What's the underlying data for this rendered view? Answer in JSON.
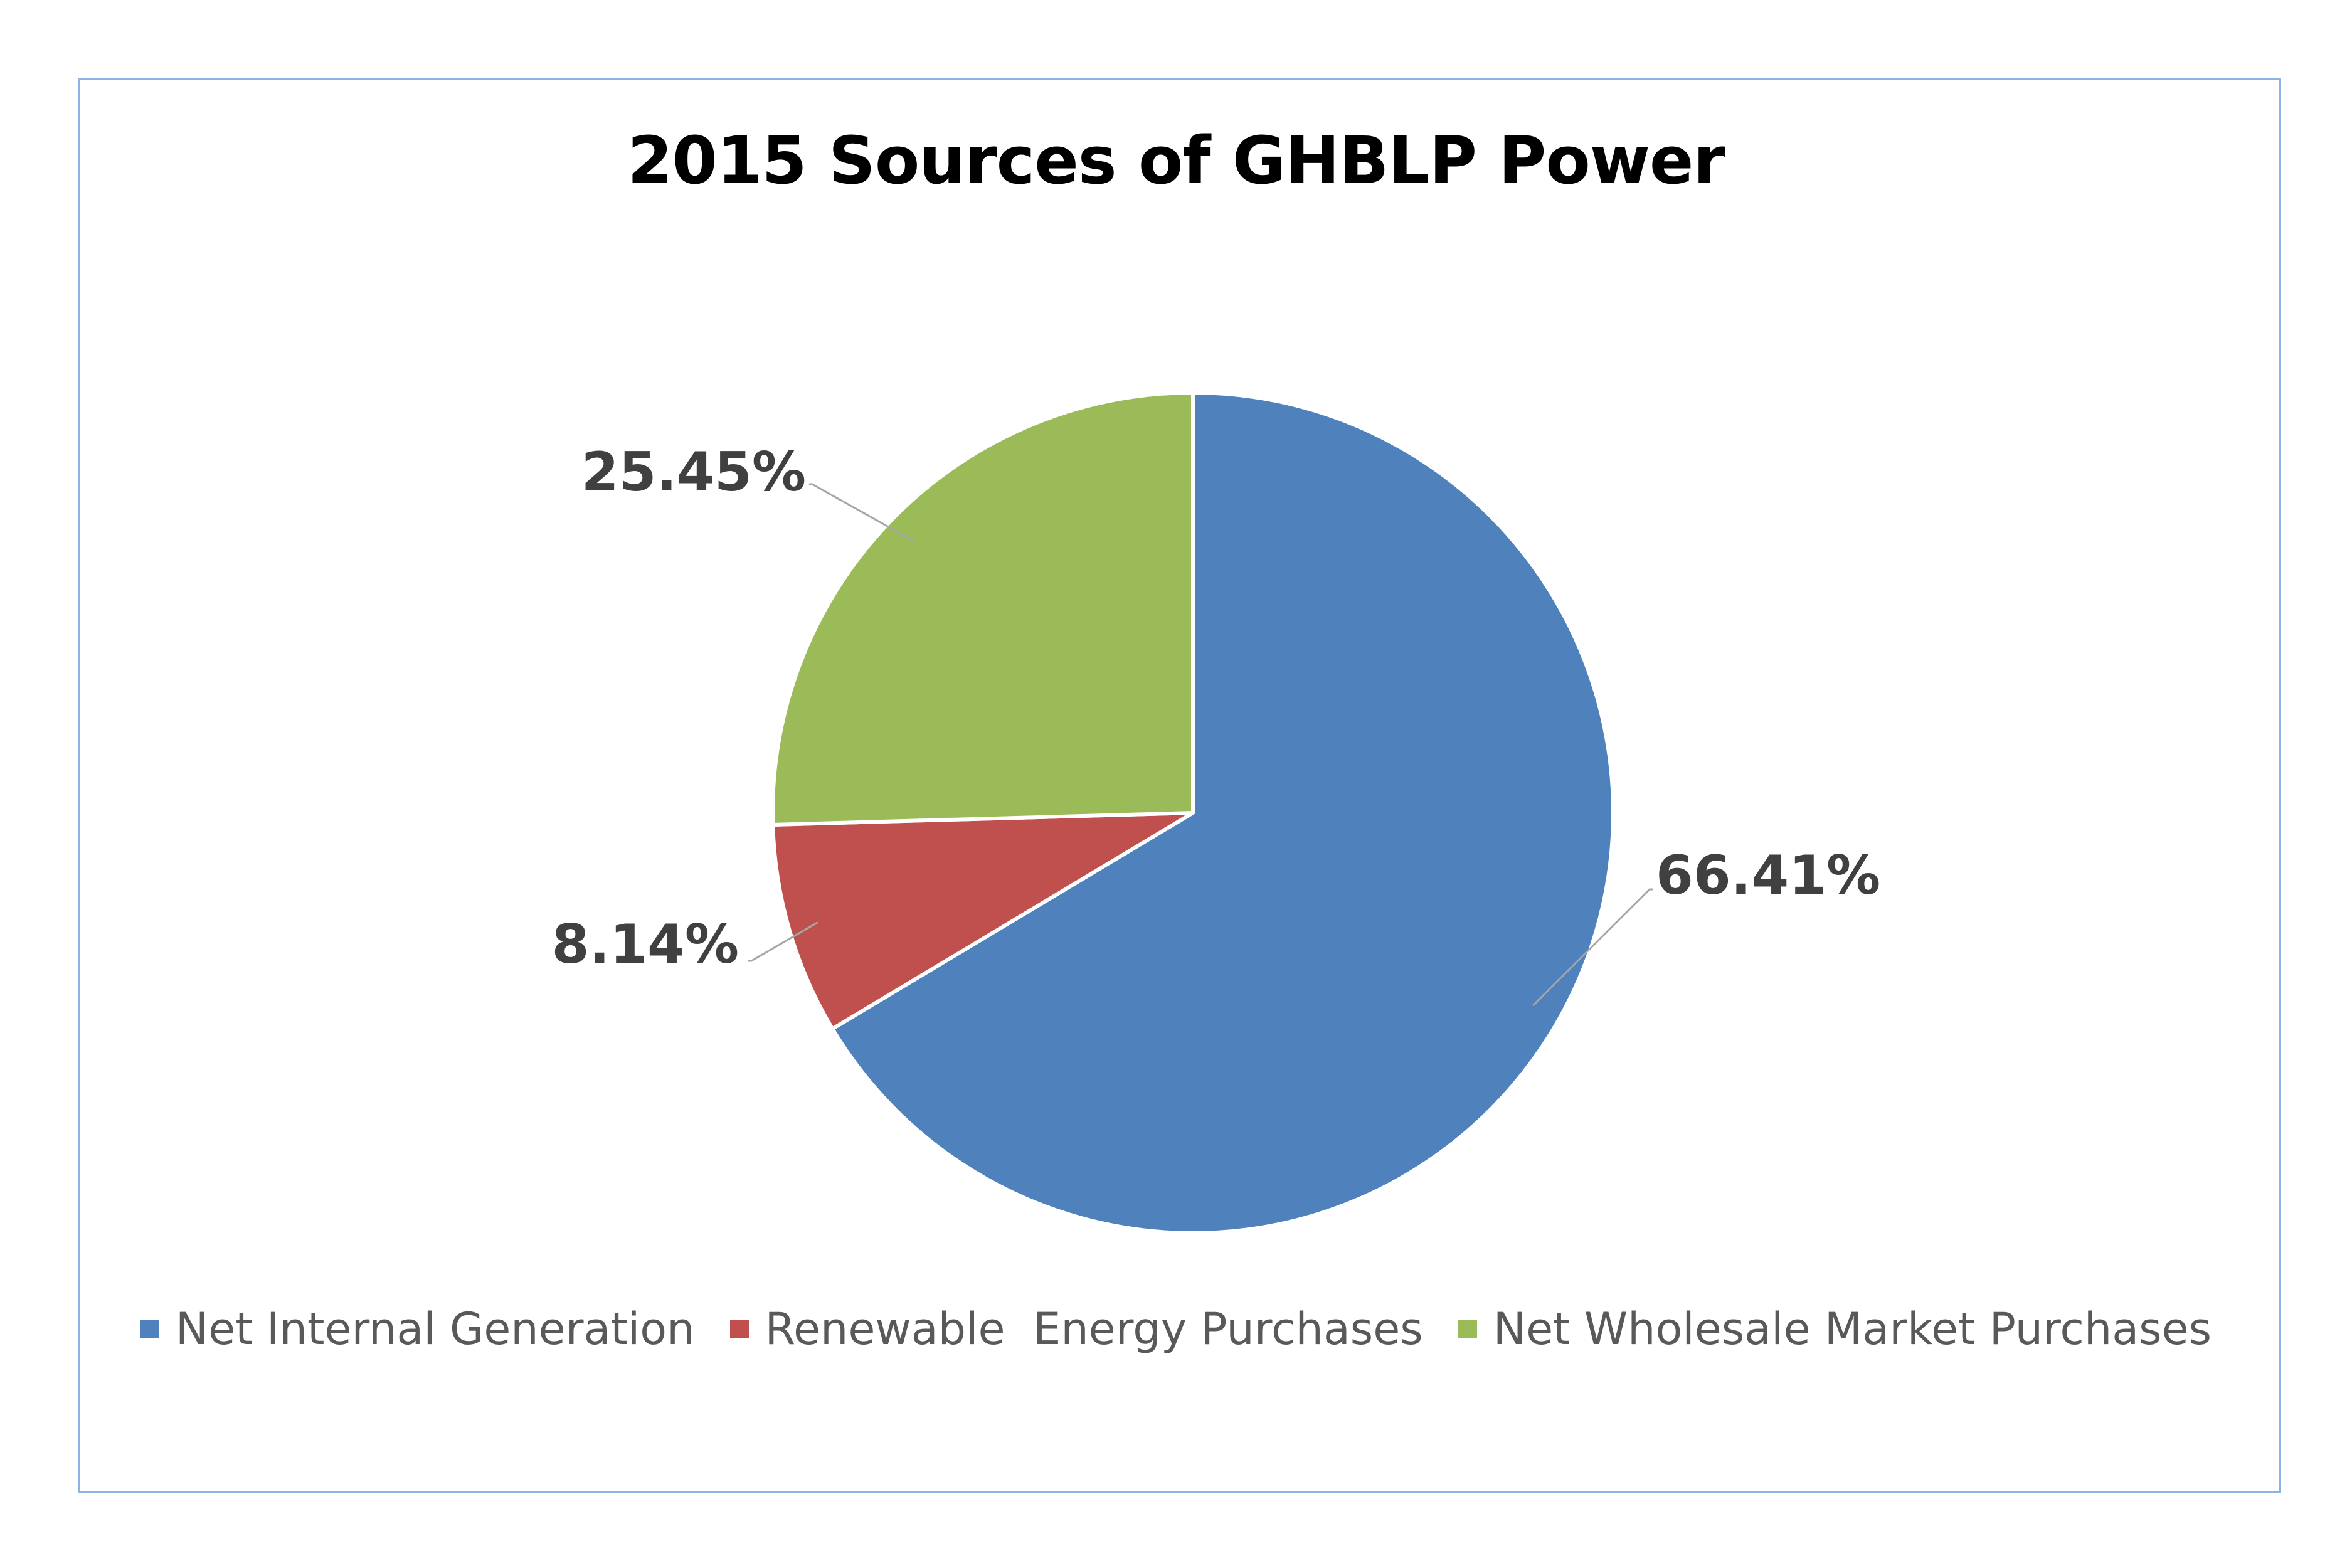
{
  "chart_data": {
    "type": "pie",
    "title": "2015 Sources of GHBLP Power",
    "categories": [
      "Net Internal Generation",
      "Renewable  Energy Purchases",
      "Net Wholesale Market Purchases"
    ],
    "values": [
      66.41,
      8.14,
      25.45
    ],
    "data_labels": [
      "66.41%",
      "8.14%",
      "25.45%"
    ],
    "colors": [
      "#4f81bd",
      "#c0504d",
      "#9bbb59"
    ],
    "legend_position": "bottom",
    "start_angle_deg": 0,
    "direction": "clockwise"
  },
  "legend": {
    "items": [
      {
        "label": "Net Internal Generation",
        "color": "#4f81bd"
      },
      {
        "label": "Renewable  Energy Purchases",
        "color": "#c0504d"
      },
      {
        "label": "Net Wholesale Market Purchases",
        "color": "#9bbb59"
      }
    ]
  }
}
